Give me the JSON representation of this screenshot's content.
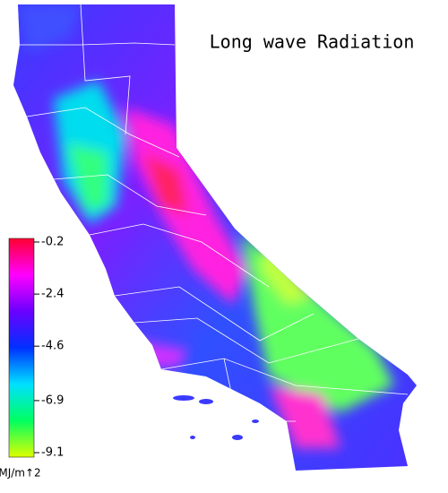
{
  "title": "Long wave Radiation",
  "legend": {
    "ticks": [
      -0.2,
      -2.4,
      -4.6,
      -6.9,
      -9.1
    ],
    "colors": [
      "#ff0030",
      "#ff00ff",
      "#6a00ff",
      "#0030ff",
      "#00e0ff",
      "#00ff60",
      "#ddff00"
    ],
    "unit": "MJ/m↑2"
  }
}
